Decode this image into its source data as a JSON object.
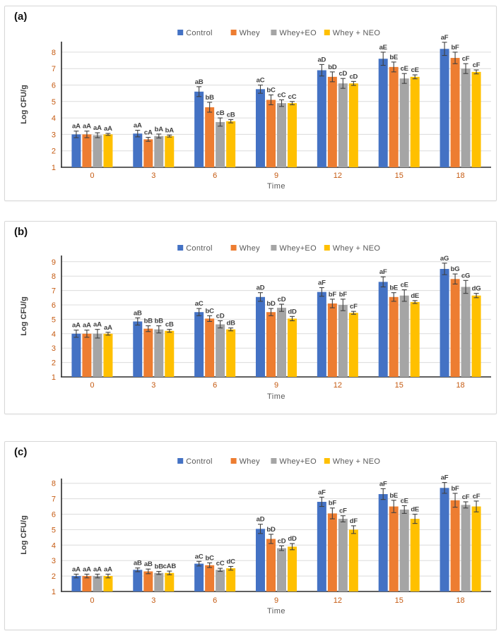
{
  "figure": {
    "panel_letters": [
      "(a)",
      "(b)",
      "(c)"
    ]
  },
  "colors": {
    "control": "#4472C4",
    "whey": "#ED7D31",
    "whey_eo": "#A5A5A5",
    "whey_neo": "#FFC000",
    "tick_text": "#C55A11",
    "legend_text": "#595959",
    "axis_title_text": "#404040",
    "annotation_text": "#404040",
    "error_bar": "#404040",
    "gridline": "#DCDCDC",
    "axis_line": "#2b2b2b"
  },
  "chart_data": [
    {
      "type": "bar",
      "panel_label": "(a)",
      "xlabel": "Time",
      "ylabel": "Log CFU/g",
      "ylim": [
        1,
        8
      ],
      "yticks": [
        1,
        2,
        3,
        4,
        5,
        6,
        7,
        8
      ],
      "categories": [
        "0",
        "3",
        "6",
        "9",
        "12",
        "15",
        "18"
      ],
      "legend_position": "top",
      "grid": "horizontal",
      "error_bars": true,
      "series": [
        {
          "name": "Control",
          "color": "#4472C4",
          "values": [
            3.0,
            3.05,
            5.6,
            5.75,
            6.9,
            7.6,
            8.2
          ],
          "errors": [
            0.2,
            0.2,
            0.3,
            0.25,
            0.35,
            0.4,
            0.4
          ],
          "labels": [
            "aA",
            "aA",
            "aB",
            "aC",
            "aD",
            "aE",
            "aF"
          ]
        },
        {
          "name": "Whey",
          "color": "#ED7D31",
          "values": [
            3.0,
            2.7,
            4.65,
            5.1,
            6.5,
            7.1,
            7.65
          ],
          "errors": [
            0.2,
            0.12,
            0.3,
            0.3,
            0.3,
            0.3,
            0.35
          ],
          "labels": [
            "aA",
            "cA",
            "bB",
            "bC",
            "bD",
            "bE",
            "bF"
          ]
        },
        {
          "name": "Whey+EO",
          "color": "#A5A5A5",
          "values": [
            2.95,
            2.9,
            3.75,
            4.9,
            6.1,
            6.4,
            7.0
          ],
          "errors": [
            0.15,
            0.12,
            0.25,
            0.2,
            0.3,
            0.3,
            0.3
          ],
          "labels": [
            "aA",
            "bA",
            "cB",
            "cC",
            "cD",
            "cE",
            "cF"
          ]
        },
        {
          "name": "Whey + NEO",
          "color": "#FFC000",
          "values": [
            3.0,
            2.9,
            3.8,
            4.9,
            6.1,
            6.5,
            6.8
          ],
          "errors": [
            0.06,
            0.06,
            0.1,
            0.1,
            0.12,
            0.12,
            0.12
          ],
          "labels": [
            "aA",
            "bA",
            "cB",
            "cC",
            "cD",
            "cE",
            "cF"
          ]
        }
      ]
    },
    {
      "type": "bar",
      "panel_label": "(b)",
      "xlabel": "Time",
      "ylabel": "Log CFU/g",
      "ylim": [
        1,
        9
      ],
      "yticks": [
        1,
        2,
        3,
        4,
        5,
        6,
        7,
        8,
        9
      ],
      "categories": [
        "0",
        "3",
        "6",
        "9",
        "12",
        "15",
        "18"
      ],
      "legend_position": "top",
      "grid": "horizontal",
      "error_bars": true,
      "series": [
        {
          "name": "Control",
          "color": "#4472C4",
          "values": [
            4.0,
            4.85,
            5.5,
            6.55,
            6.9,
            7.6,
            8.5
          ],
          "errors": [
            0.25,
            0.25,
            0.25,
            0.3,
            0.3,
            0.35,
            0.4
          ],
          "labels": [
            "aA",
            "aB",
            "aC",
            "aD",
            "aF",
            "aF",
            "aG"
          ]
        },
        {
          "name": "Whey",
          "color": "#ED7D31",
          "values": [
            4.0,
            4.35,
            5.05,
            5.5,
            6.1,
            6.55,
            7.8
          ],
          "errors": [
            0.25,
            0.2,
            0.2,
            0.25,
            0.3,
            0.3,
            0.35
          ],
          "labels": [
            "aA",
            "bB",
            "bC",
            "bD",
            "bF",
            "bE",
            "bG"
          ]
        },
        {
          "name": "Whey+EO",
          "color": "#A5A5A5",
          "values": [
            4.0,
            4.3,
            4.65,
            5.8,
            6.0,
            6.65,
            7.25
          ],
          "errors": [
            0.3,
            0.25,
            0.25,
            0.25,
            0.4,
            0.4,
            0.45
          ],
          "labels": [
            "aA",
            "bB",
            "cD",
            "cD",
            "bF",
            "cE",
            "cG"
          ]
        },
        {
          "name": "Whey + NEO",
          "color": "#FFC000",
          "values": [
            4.0,
            4.2,
            4.3,
            5.05,
            5.45,
            6.2,
            6.65
          ],
          "errors": [
            0.1,
            0.1,
            0.1,
            0.15,
            0.1,
            0.1,
            0.15
          ],
          "labels": [
            "aA",
            "cB",
            "dB",
            "dD",
            "cF",
            "dE",
            "dG"
          ]
        }
      ]
    },
    {
      "type": "bar",
      "panel_label": "(c)",
      "xlabel": "Time",
      "ylabel": "Log CFU/g",
      "ylim": [
        1,
        8
      ],
      "yticks": [
        1,
        2,
        3,
        4,
        5,
        6,
        7,
        8
      ],
      "categories": [
        "0",
        "3",
        "6",
        "9",
        "12",
        "15",
        "18"
      ],
      "legend_position": "top",
      "grid": "horizontal",
      "error_bars": true,
      "series": [
        {
          "name": "Control",
          "color": "#4472C4",
          "values": [
            2.0,
            2.4,
            2.8,
            5.05,
            6.8,
            7.3,
            7.7
          ],
          "errors": [
            0.12,
            0.12,
            0.15,
            0.3,
            0.3,
            0.35,
            0.35
          ],
          "labels": [
            "aA",
            "aB",
            "aC",
            "aD",
            "aF",
            "aF",
            "aF"
          ]
        },
        {
          "name": "Whey",
          "color": "#ED7D31",
          "values": [
            2.0,
            2.3,
            2.7,
            4.4,
            6.05,
            6.5,
            6.9
          ],
          "errors": [
            0.12,
            0.15,
            0.15,
            0.3,
            0.35,
            0.4,
            0.45
          ],
          "labels": [
            "aA",
            "aB",
            "bC",
            "bD",
            "bF",
            "bE",
            "bF"
          ]
        },
        {
          "name": "Whey+EO",
          "color": "#A5A5A5",
          "values": [
            2.0,
            2.2,
            2.4,
            3.8,
            5.7,
            6.3,
            6.6
          ],
          "errors": [
            0.12,
            0.1,
            0.1,
            0.15,
            0.2,
            0.25,
            0.2
          ],
          "labels": [
            "aA",
            "bB",
            "cC",
            "cD",
            "cF",
            "cE",
            "cF"
          ]
        },
        {
          "name": "Whey + NEO",
          "color": "#FFC000",
          "values": [
            2.0,
            2.2,
            2.5,
            3.9,
            5.0,
            5.7,
            6.5
          ],
          "errors": [
            0.12,
            0.12,
            0.12,
            0.2,
            0.25,
            0.3,
            0.35
          ],
          "labels": [
            "aA",
            "cAB",
            "dC",
            "dD",
            "dF",
            "dE",
            "cF"
          ]
        }
      ]
    }
  ]
}
